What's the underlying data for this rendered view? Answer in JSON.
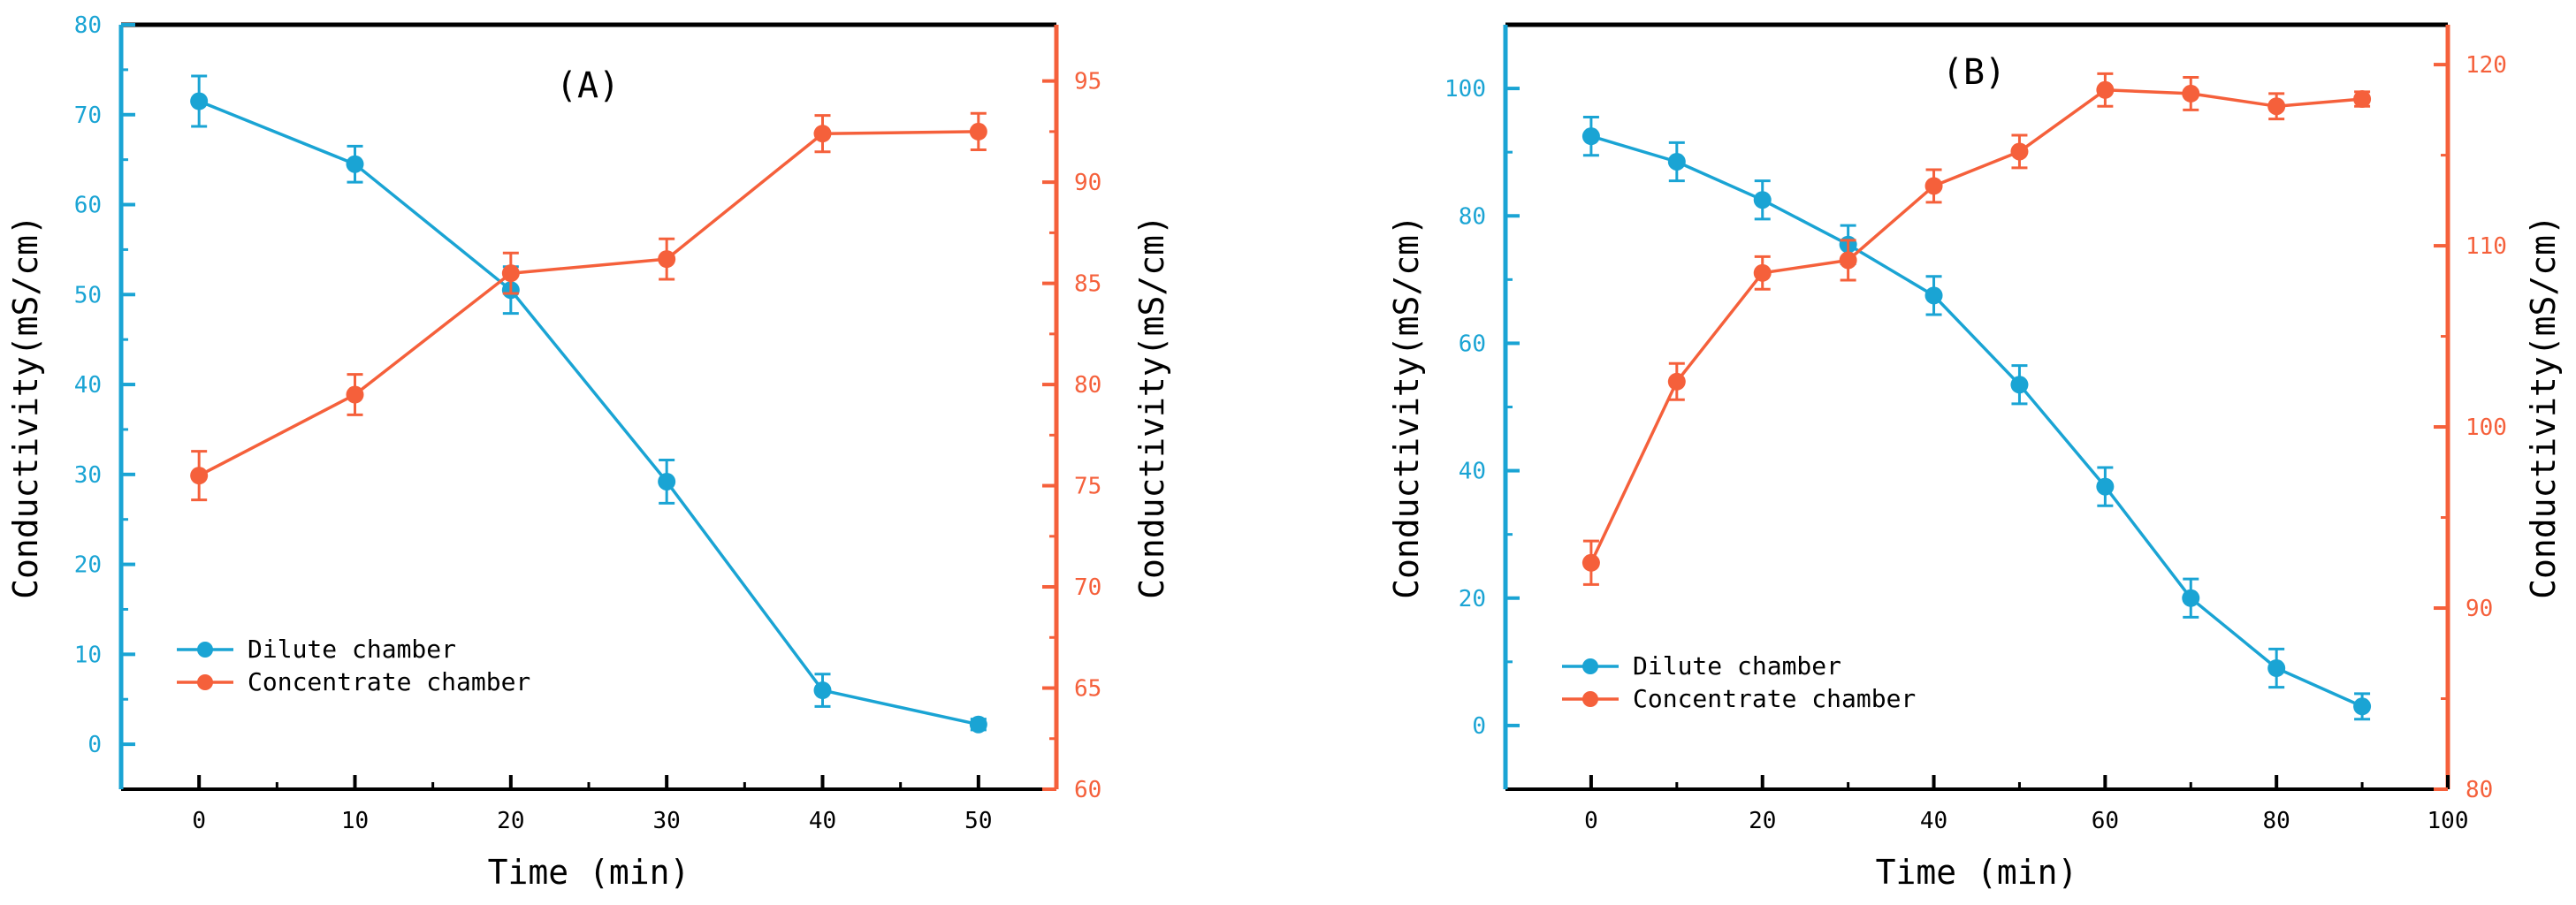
{
  "chart_data": [
    {
      "type": "line",
      "panel_label": "(A)",
      "xlabel": "Time (min)",
      "ylabel_left": "Conductivity(mS/cm)",
      "ylabel_right": "Conductivity(mS/cm)",
      "xlim": [
        -5,
        55
      ],
      "ylim_left": [
        -5,
        80
      ],
      "ylim_right": [
        60,
        97.78
      ],
      "xticks": [
        0,
        10,
        20,
        30,
        40,
        50
      ],
      "yticks_left": [
        0,
        10,
        20,
        30,
        40,
        50,
        60,
        70,
        80
      ],
      "yticks_right": [
        60,
        65,
        70,
        75,
        80,
        85,
        90,
        95
      ],
      "series": [
        {
          "name": "Dilute chamber",
          "axis": "left",
          "color": "#1aa4d4",
          "x": [
            0,
            10,
            20,
            30,
            40,
            50
          ],
          "y": [
            71.5,
            64.5,
            50.5,
            29.2,
            6.0,
            2.2
          ],
          "err": [
            2.8,
            2.0,
            2.6,
            2.4,
            1.8,
            0.6
          ]
        },
        {
          "name": "Concentrate chamber",
          "axis": "right",
          "color": "#f5603b",
          "x": [
            0,
            10,
            20,
            30,
            40,
            50
          ],
          "y": [
            75.5,
            79.5,
            85.5,
            86.2,
            92.4,
            92.5
          ],
          "err": [
            1.2,
            1.0,
            1.0,
            1.0,
            0.9,
            0.9
          ]
        }
      ],
      "legend_position": "bottom-left"
    },
    {
      "type": "line",
      "panel_label": "(B)",
      "xlabel": "Time (min)",
      "ylabel_left": "Conductivity(mS/cm)",
      "ylabel_right": "Conductivity(mS/cm)",
      "xlim": [
        -10,
        100
      ],
      "ylim_left": [
        -10,
        110
      ],
      "ylim_right": [
        80,
        122.2
      ],
      "xticks": [
        0,
        20,
        40,
        60,
        80,
        100
      ],
      "yticks_left": [
        0,
        20,
        40,
        60,
        80,
        100
      ],
      "yticks_right": [
        80,
        90,
        100,
        110,
        120
      ],
      "series": [
        {
          "name": "Dilute chamber",
          "axis": "left",
          "color": "#1aa4d4",
          "x": [
            0,
            10,
            20,
            30,
            40,
            50,
            60,
            70,
            80,
            90
          ],
          "y": [
            92.5,
            88.5,
            82.5,
            75.5,
            67.5,
            53.5,
            37.5,
            20.0,
            9.0,
            3.0
          ],
          "err": [
            3.0,
            3.0,
            3.0,
            3.0,
            3.0,
            3.0,
            3.0,
            3.0,
            3.0,
            2.0
          ]
        },
        {
          "name": "Concentrate chamber",
          "axis": "right",
          "color": "#f5603b",
          "x": [
            0,
            10,
            20,
            30,
            40,
            50,
            60,
            70,
            80,
            90
          ],
          "y": [
            92.5,
            102.5,
            108.5,
            109.2,
            113.3,
            115.2,
            118.6,
            118.4,
            117.7,
            118.1
          ],
          "err": [
            1.2,
            1.0,
            0.9,
            1.1,
            0.9,
            0.9,
            0.9,
            0.9,
            0.7,
            0.4
          ]
        }
      ],
      "legend_position": "bottom-left"
    }
  ]
}
